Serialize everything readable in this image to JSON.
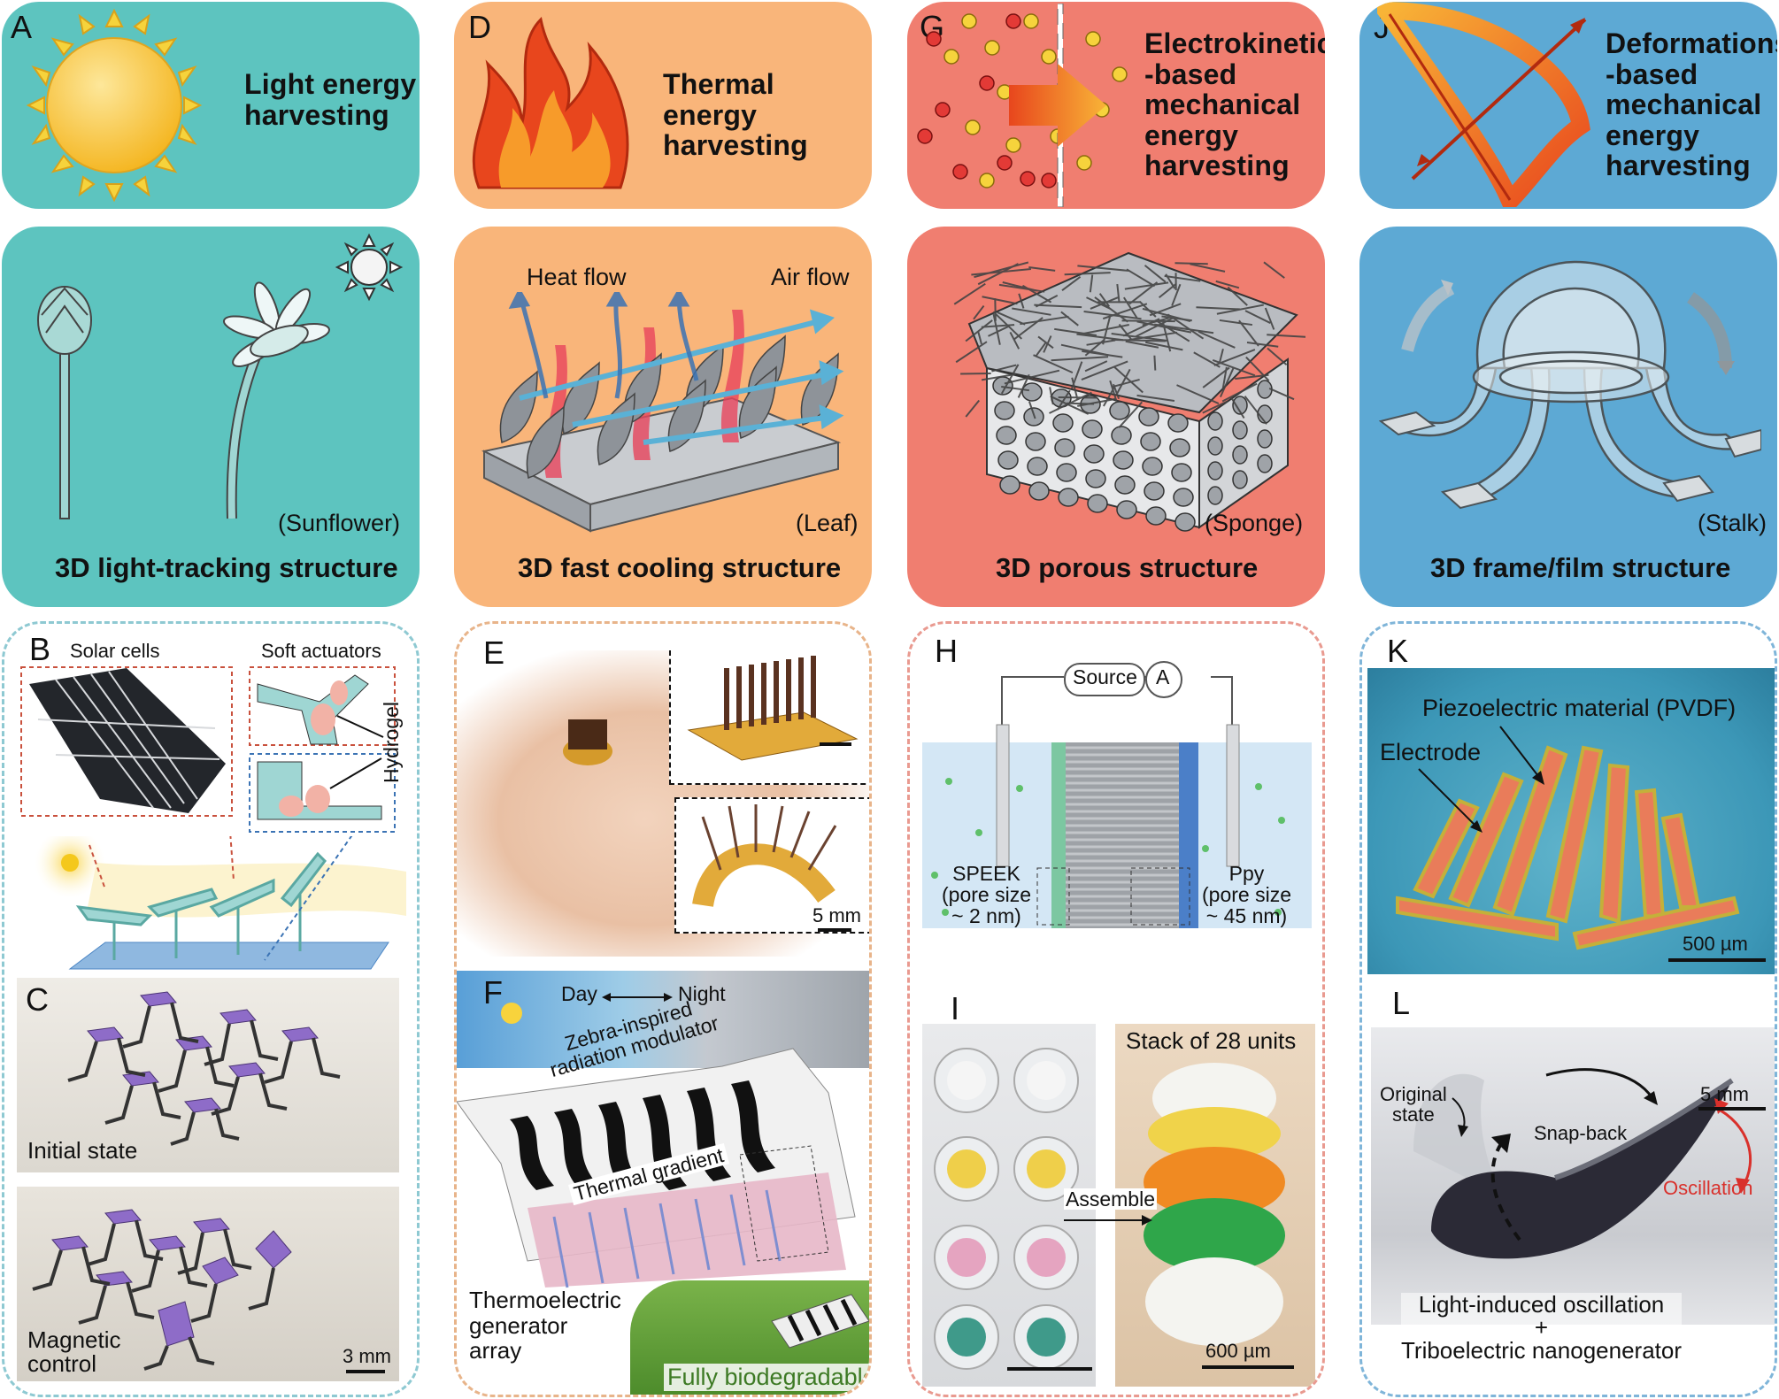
{
  "panels": {
    "A": {
      "letter": "A",
      "title_line1": "Light energy",
      "title_line2": "harvesting",
      "caption": "3D light-tracking structure",
      "example": "(Sunflower)"
    },
    "D": {
      "letter": "D",
      "title_line1": "Thermal energy",
      "title_line2": "harvesting",
      "caption": "3D fast cooling structure",
      "example": "(Leaf)",
      "heat_flow": "Heat flow",
      "air_flow": "Air flow"
    },
    "G": {
      "letter": "G",
      "title_line1": "Electrokinetics",
      "title_line2": "-based",
      "title_line3": "mechanical",
      "title_line4": "energy",
      "title_line5": "harvesting",
      "caption": "3D porous structure",
      "example": "(Sponge)"
    },
    "J": {
      "letter": "J",
      "title_line1": "Deformations",
      "title_line2": "-based",
      "title_line3": "mechanical",
      "title_line4": "energy",
      "title_line5": "harvesting",
      "caption": "3D frame/film structure",
      "example": "(Stalk)"
    },
    "B": {
      "letter": "B",
      "solar_cells": "Solar cells",
      "soft_actuators": "Soft actuators",
      "hydrogel": "Hydrogel"
    },
    "C": {
      "letter": "C",
      "initial_state": "Initial state",
      "magnetic_line1": "Magnetic",
      "magnetic_line2": "control",
      "scale": "3 mm"
    },
    "E": {
      "letter": "E",
      "scale": "5 mm"
    },
    "F": {
      "letter": "F",
      "day": "Day",
      "night": "Night",
      "zebra_line1": "Zebra-inspired",
      "zebra_line2": "radiation modulator",
      "thermal_gradient": "Thermal gradient",
      "teg_line1": "Thermoelectric",
      "teg_line2": "generator",
      "teg_line3": "array",
      "biodegradable": "Fully biodegradable"
    },
    "H": {
      "letter": "H",
      "source": "Source",
      "ammeter": "A",
      "speek_line1": "SPEEK",
      "speek_line2": "(pore size",
      "speek_line3": "~ 2 nm)",
      "ppy_line1": "Ppy",
      "ppy_line2": "(pore size",
      "ppy_line3": "~ 45 nm)"
    },
    "I": {
      "letter": "I",
      "stack": "Stack of 28 units",
      "assemble": "Assemble",
      "scale": "600 µm"
    },
    "K": {
      "letter": "K",
      "pvdf": "Piezoelectric material (PVDF)",
      "electrode": "Electrode",
      "scale": "500 µm"
    },
    "L": {
      "letter": "L",
      "original_line1": "Original",
      "original_line2": "state",
      "snap_back": "Snap-back",
      "oscillation": "Oscillation",
      "scale": "5 mm",
      "bottom_line1": "Light-induced oscillation",
      "bottom_line2": "+",
      "bottom_line3": "Triboelectric nanogenerator"
    }
  },
  "colors": {
    "teal": "#5dc4bf",
    "orange": "#f9b57a",
    "red": "#f07e70",
    "blue": "#5da9d4",
    "oscillation_red": "#d9302b",
    "biodegradable_green": "#3d7a24"
  }
}
